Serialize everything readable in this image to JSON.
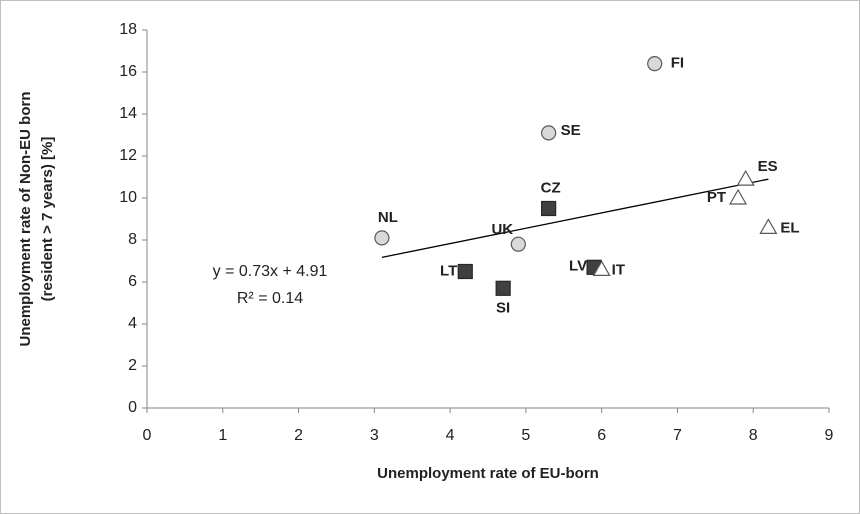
{
  "chart_data": {
    "type": "scatter",
    "xlabel": "Unemployment rate of EU-born",
    "ylabel": [
      "Unemployment rate of Non-EU born",
      "(resident > 7 years) [%]"
    ],
    "xlim": [
      0,
      9
    ],
    "xticks": [
      0,
      1,
      2,
      3,
      4,
      5,
      6,
      7,
      8,
      9
    ],
    "ylim": [
      0,
      18
    ],
    "yticks": [
      0,
      2,
      4,
      6,
      8,
      10,
      12,
      14,
      16,
      18
    ],
    "grid": false,
    "marker_styles": {
      "circle": {
        "fill": "#d9d9d9",
        "stroke": "#595959"
      },
      "square": {
        "fill": "#404040",
        "stroke": "#262626"
      },
      "triangle": {
        "fill": "#ffffff",
        "stroke": "#595959"
      }
    },
    "points": [
      {
        "label": "FI",
        "x": 6.7,
        "y": 16.4,
        "marker": "circle"
      },
      {
        "label": "SE",
        "x": 5.3,
        "y": 13.1,
        "marker": "circle"
      },
      {
        "label": "NL",
        "x": 3.1,
        "y": 8.1,
        "marker": "circle"
      },
      {
        "label": "UK",
        "x": 4.9,
        "y": 7.8,
        "marker": "circle"
      },
      {
        "label": "CZ",
        "x": 5.3,
        "y": 9.5,
        "marker": "square"
      },
      {
        "label": "LT",
        "x": 4.2,
        "y": 6.5,
        "marker": "square"
      },
      {
        "label": "SI",
        "x": 4.7,
        "y": 5.7,
        "marker": "square"
      },
      {
        "label": "LV",
        "x": 5.9,
        "y": 6.7,
        "marker": "square"
      },
      {
        "label": "IT",
        "x": 6.0,
        "y": 6.6,
        "marker": "triangle"
      },
      {
        "label": "ES",
        "x": 7.9,
        "y": 10.9,
        "marker": "triangle"
      },
      {
        "label": "PT",
        "x": 7.8,
        "y": 10.0,
        "marker": "triangle"
      },
      {
        "label": "EL",
        "x": 8.2,
        "y": 8.6,
        "marker": "triangle"
      }
    ],
    "trendline": {
      "slope": 0.73,
      "intercept": 4.91,
      "equation": "y = 0.73x + 4.91",
      "r2": "R² = 0.14",
      "color": "#000000"
    }
  }
}
